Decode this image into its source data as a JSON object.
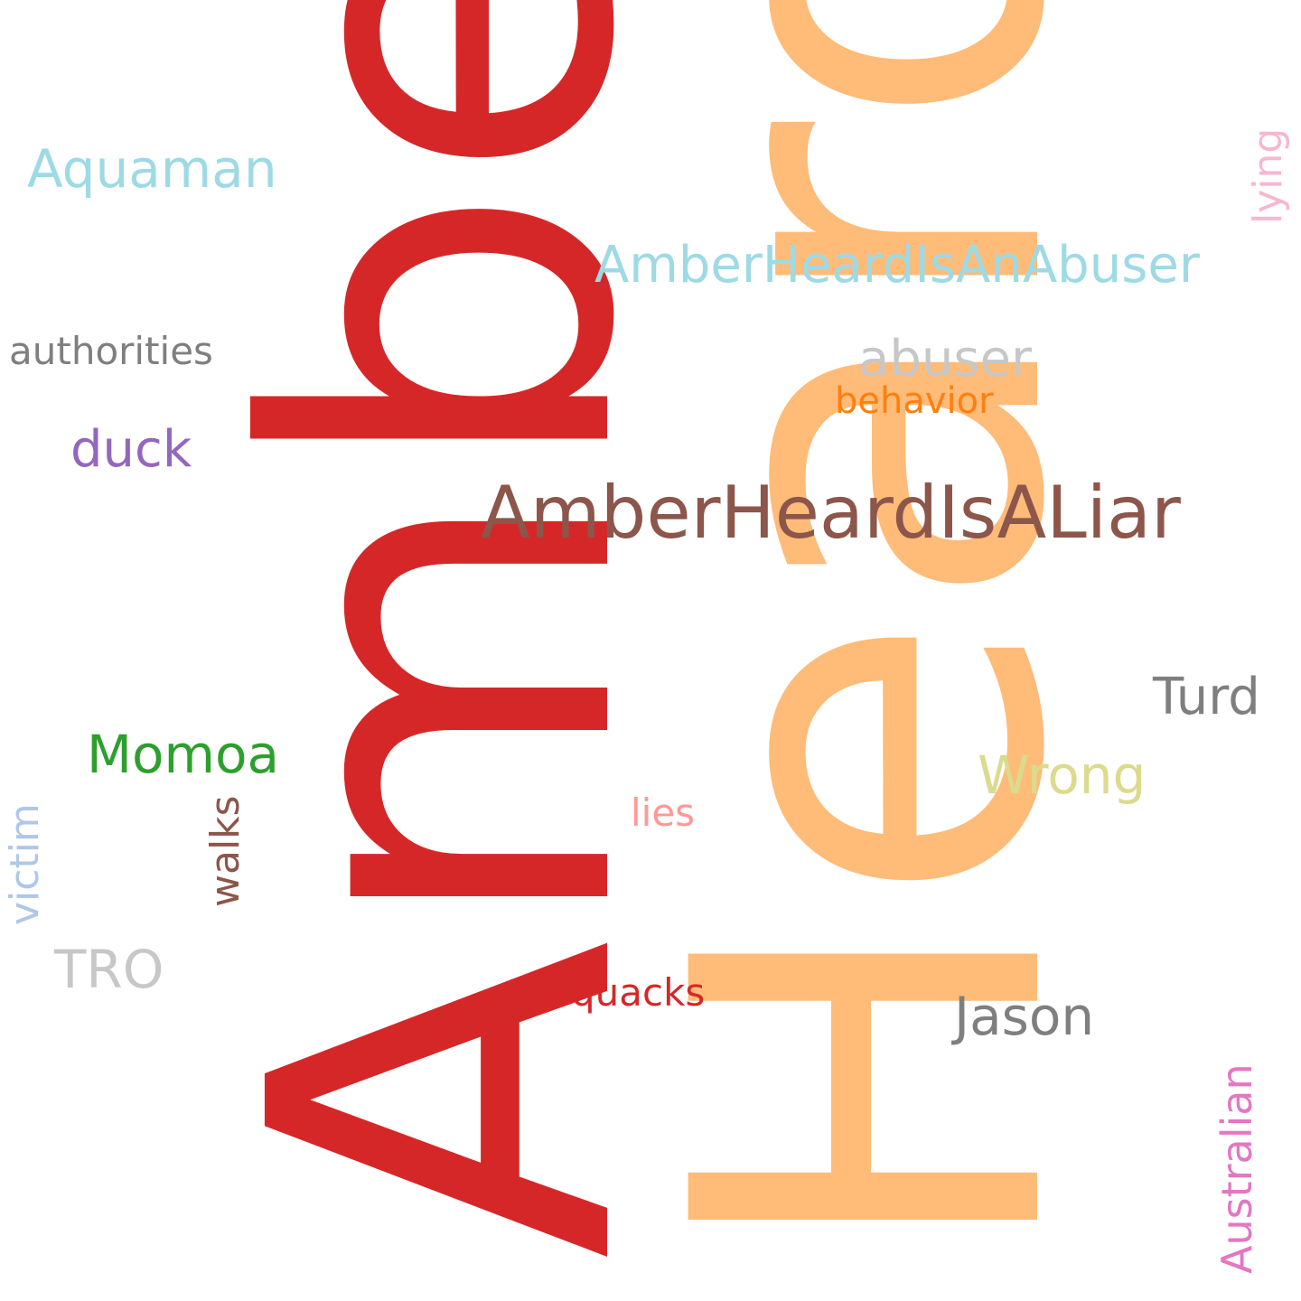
{
  "words": {
    "amber": {
      "text": "Amber",
      "color": "#d62728"
    },
    "heard": {
      "text": "Heard",
      "color": "#ffbb78"
    },
    "aquaman": {
      "text": "Aquaman",
      "color": "#9edae5"
    },
    "abuser_tag": {
      "text": "AmberHeardIsAnAbuser",
      "color": "#9edae5"
    },
    "authorities": {
      "text": "authorities",
      "color": "#7f7f7f"
    },
    "abuser": {
      "text": "abuser",
      "color": "#c7c7c7"
    },
    "behavior": {
      "text": "behavior",
      "color": "#ff7f0e"
    },
    "duck": {
      "text": "duck",
      "color": "#9467bd"
    },
    "liar_tag": {
      "text": "AmberHeardIsALiar",
      "color": "#8c564b"
    },
    "turd": {
      "text": "Turd",
      "color": "#7f7f7f"
    },
    "momoa": {
      "text": "Momoa",
      "color": "#2ca02c"
    },
    "wrong": {
      "text": "Wrong",
      "color": "#dbdb8d"
    },
    "lies": {
      "text": "lies",
      "color": "#ff9896"
    },
    "tro": {
      "text": "TRO",
      "color": "#c7c7c7"
    },
    "quacks": {
      "text": "quacks",
      "color": "#d62728"
    },
    "jason": {
      "text": "Jason",
      "color": "#7f7f7f"
    },
    "lying": {
      "text": "lying",
      "color": "#f7b6d2"
    },
    "walks": {
      "text": "walks",
      "color": "#8c564b"
    },
    "victim": {
      "text": "victim",
      "color": "#aec7e8"
    },
    "australian": {
      "text": "Australian",
      "color": "#e377c2"
    }
  }
}
